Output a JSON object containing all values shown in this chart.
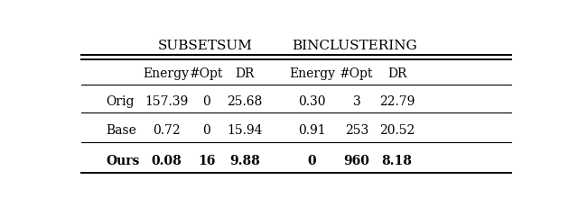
{
  "title_left": "SubsetSum",
  "title_right": "BinClustering",
  "col_headers": [
    "Energy",
    "#Opt",
    "DR",
    "Energy",
    "#Opt",
    "DR"
  ],
  "row_labels": [
    "Orig",
    "Base",
    "Ours"
  ],
  "rows": [
    [
      "157.39",
      "0",
      "25.68",
      "0.30",
      "3",
      "22.79"
    ],
    [
      "0.72",
      "0",
      "15.94",
      "0.91",
      "253",
      "20.52"
    ],
    [
      "0.08",
      "16",
      "9.88",
      "0",
      "960",
      "8.18"
    ]
  ],
  "bold_last_row": true,
  "bg_color": "#ffffff",
  "text_color": "#000000",
  "font_size": 10,
  "header_font_size": 11
}
